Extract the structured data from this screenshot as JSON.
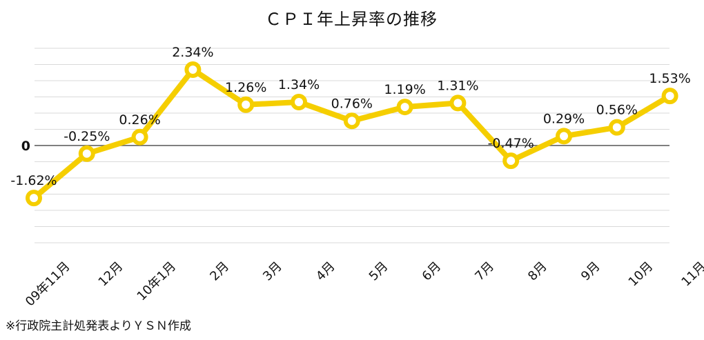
{
  "chart_data": {
    "type": "line",
    "title": "ＣＰＩ年上昇率の推移",
    "categories": [
      "09年11月",
      "12月",
      "10年1月",
      "2月",
      "3月",
      "4月",
      "5月",
      "6月",
      "7月",
      "8月",
      "9月",
      "10月",
      "11月"
    ],
    "series": [
      {
        "values": [
          -1.62,
          -0.25,
          0.26,
          2.34,
          1.26,
          1.34,
          0.76,
          1.19,
          1.31,
          -0.47,
          0.29,
          0.56,
          1.53
        ],
        "data_labels": [
          "-1.62%",
          "-0.25%",
          "0.26%",
          "2.34%",
          "1.26%",
          "1.34%",
          "0.76%",
          "1.19%",
          "1.31%",
          "-0.47%",
          "0.29%",
          "0.56%",
          "1.53%"
        ]
      }
    ],
    "y_tick_labels": [
      "0"
    ],
    "ylim": [
      -3,
      3
    ],
    "grid": true,
    "xlabel": "",
    "ylabel": "",
    "colors": {
      "line": "#F5CE00",
      "marker_fill": "#ffffff",
      "gridline": "#d9d9d9",
      "zero_line": "#555555"
    }
  },
  "footer": {
    "source_note": "※行政院主計処発表よりＹＳＮ作成"
  }
}
